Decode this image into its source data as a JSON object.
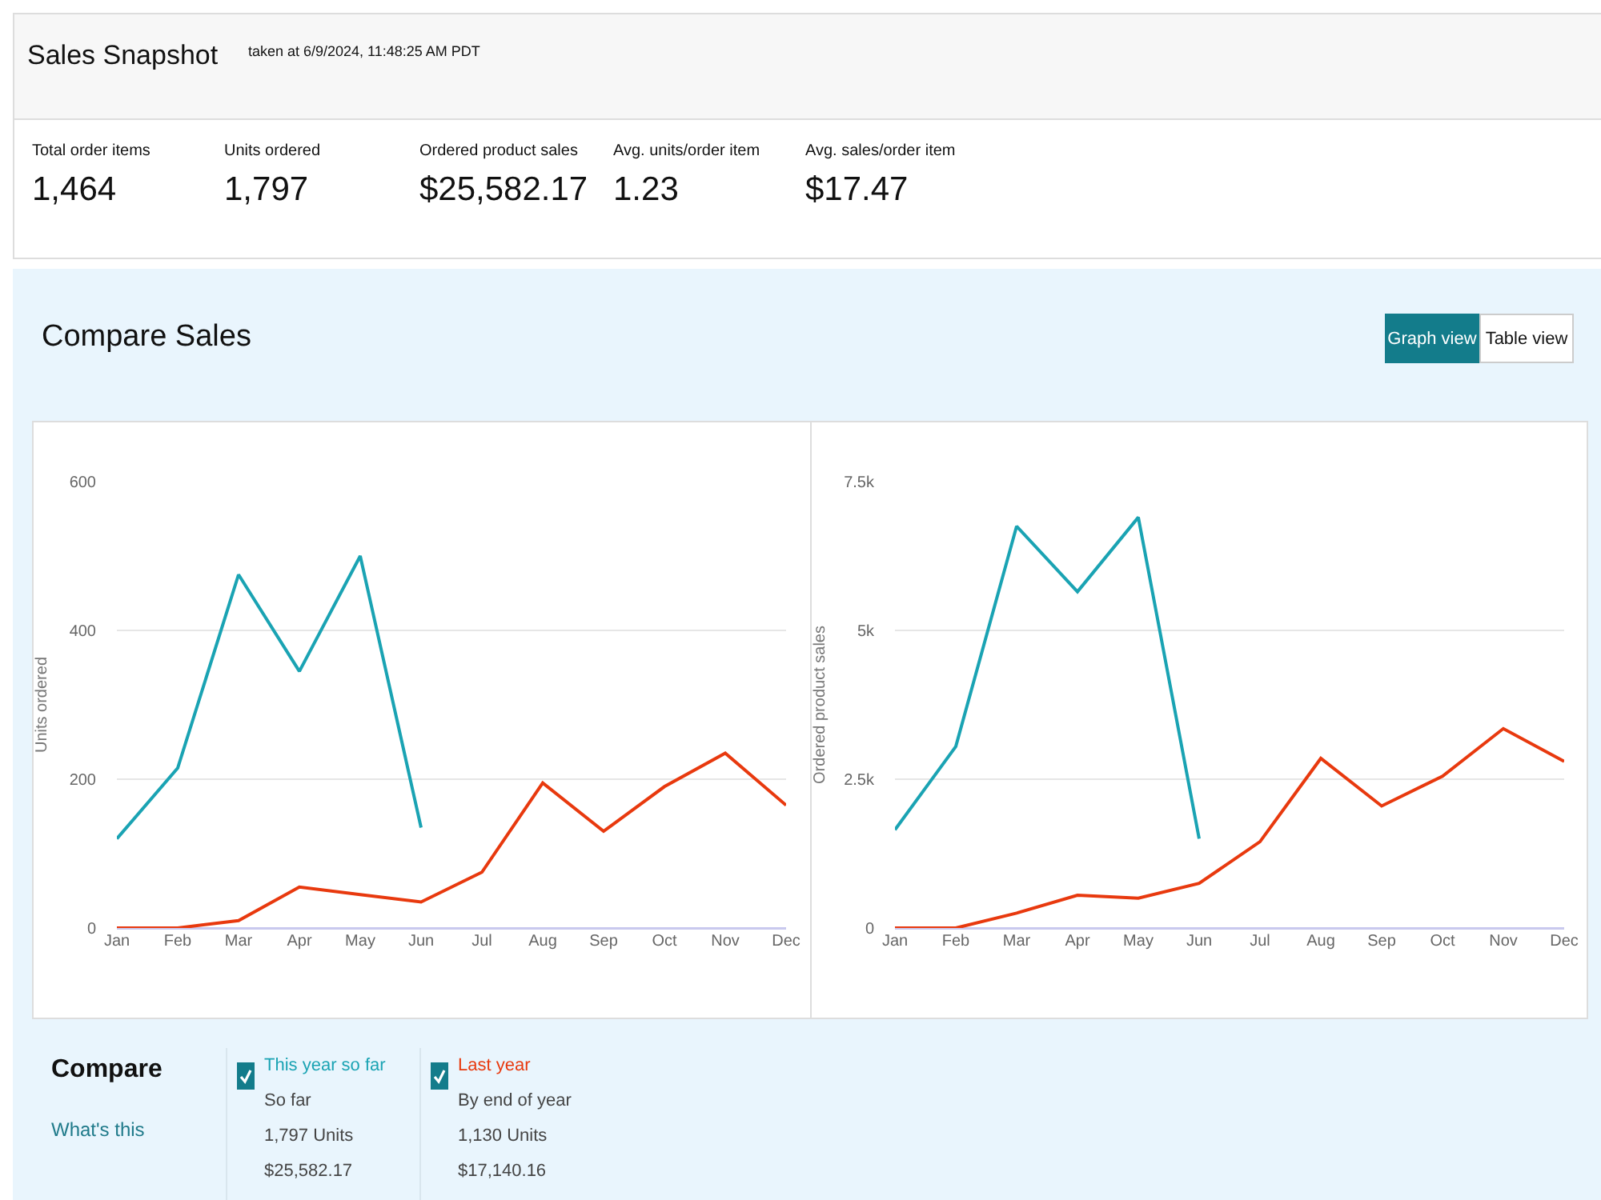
{
  "chart_data": [
    {
      "type": "other",
      "title": "Sales Snapshot",
      "subtitle": "taken at 6/9/2024, 11:48:25 AM PDT",
      "annotations": [
        "Total order items",
        "1,464",
        "Units ordered",
        "1,797",
        "Ordered product sales",
        "$25,582.17",
        "Avg. units/order item",
        "1.23",
        "Avg. sales/order item",
        "$17.47"
      ]
    },
    {
      "type": "line",
      "title": "Compare Sales",
      "annotations": [
        "Graph view",
        "Table view"
      ],
      "ylabel": "Units ordered",
      "categories": [
        "Jan",
        "Feb",
        "Mar",
        "Apr",
        "May",
        "Jun",
        "Jul",
        "Aug",
        "Sep",
        "Oct",
        "Nov",
        "Dec"
      ],
      "ylim": [
        0,
        600
      ],
      "yticks": [
        0,
        200,
        400,
        600
      ],
      "grid": "y",
      "series": [
        {
          "name": "This year so far",
          "color": "#1aa3b3",
          "values": [
            120,
            215,
            475,
            345,
            500,
            135,
            null,
            null,
            null,
            null,
            null,
            null
          ]
        },
        {
          "name": "Last year",
          "color": "#e8390e",
          "values": [
            0,
            0,
            10,
            55,
            45,
            35,
            75,
            195,
            130,
            190,
            235,
            165
          ]
        }
      ]
    },
    {
      "type": "line",
      "ylabel": "Ordered product sales",
      "categories": [
        "Jan",
        "Feb",
        "Mar",
        "Apr",
        "May",
        "Jun",
        "Jul",
        "Aug",
        "Sep",
        "Oct",
        "Nov",
        "Dec"
      ],
      "ylim": [
        0,
        7500
      ],
      "yticks": [
        0,
        {
          "value": 2500,
          "label": "2.5k"
        },
        {
          "value": 5000,
          "label": "5k"
        },
        {
          "value": 7500,
          "label": "7.5k"
        }
      ],
      "grid": "y",
      "series": [
        {
          "color": "#1aa3b3",
          "values": [
            1650,
            3050,
            6750,
            5650,
            6900,
            1500,
            null,
            null,
            null,
            null,
            null,
            null
          ]
        },
        {
          "color": "#e8390e",
          "values": [
            0,
            0,
            250,
            550,
            500,
            750,
            1450,
            2850,
            2050,
            2550,
            3350,
            2800
          ]
        }
      ]
    },
    {
      "type": "other",
      "title": "Compare",
      "annotations": [
        "What's this",
        "So far",
        "1,797 Units",
        "$25,582.17",
        "By end of year",
        "1,130 Units",
        "$17,140.16"
      ]
    }
  ]
}
